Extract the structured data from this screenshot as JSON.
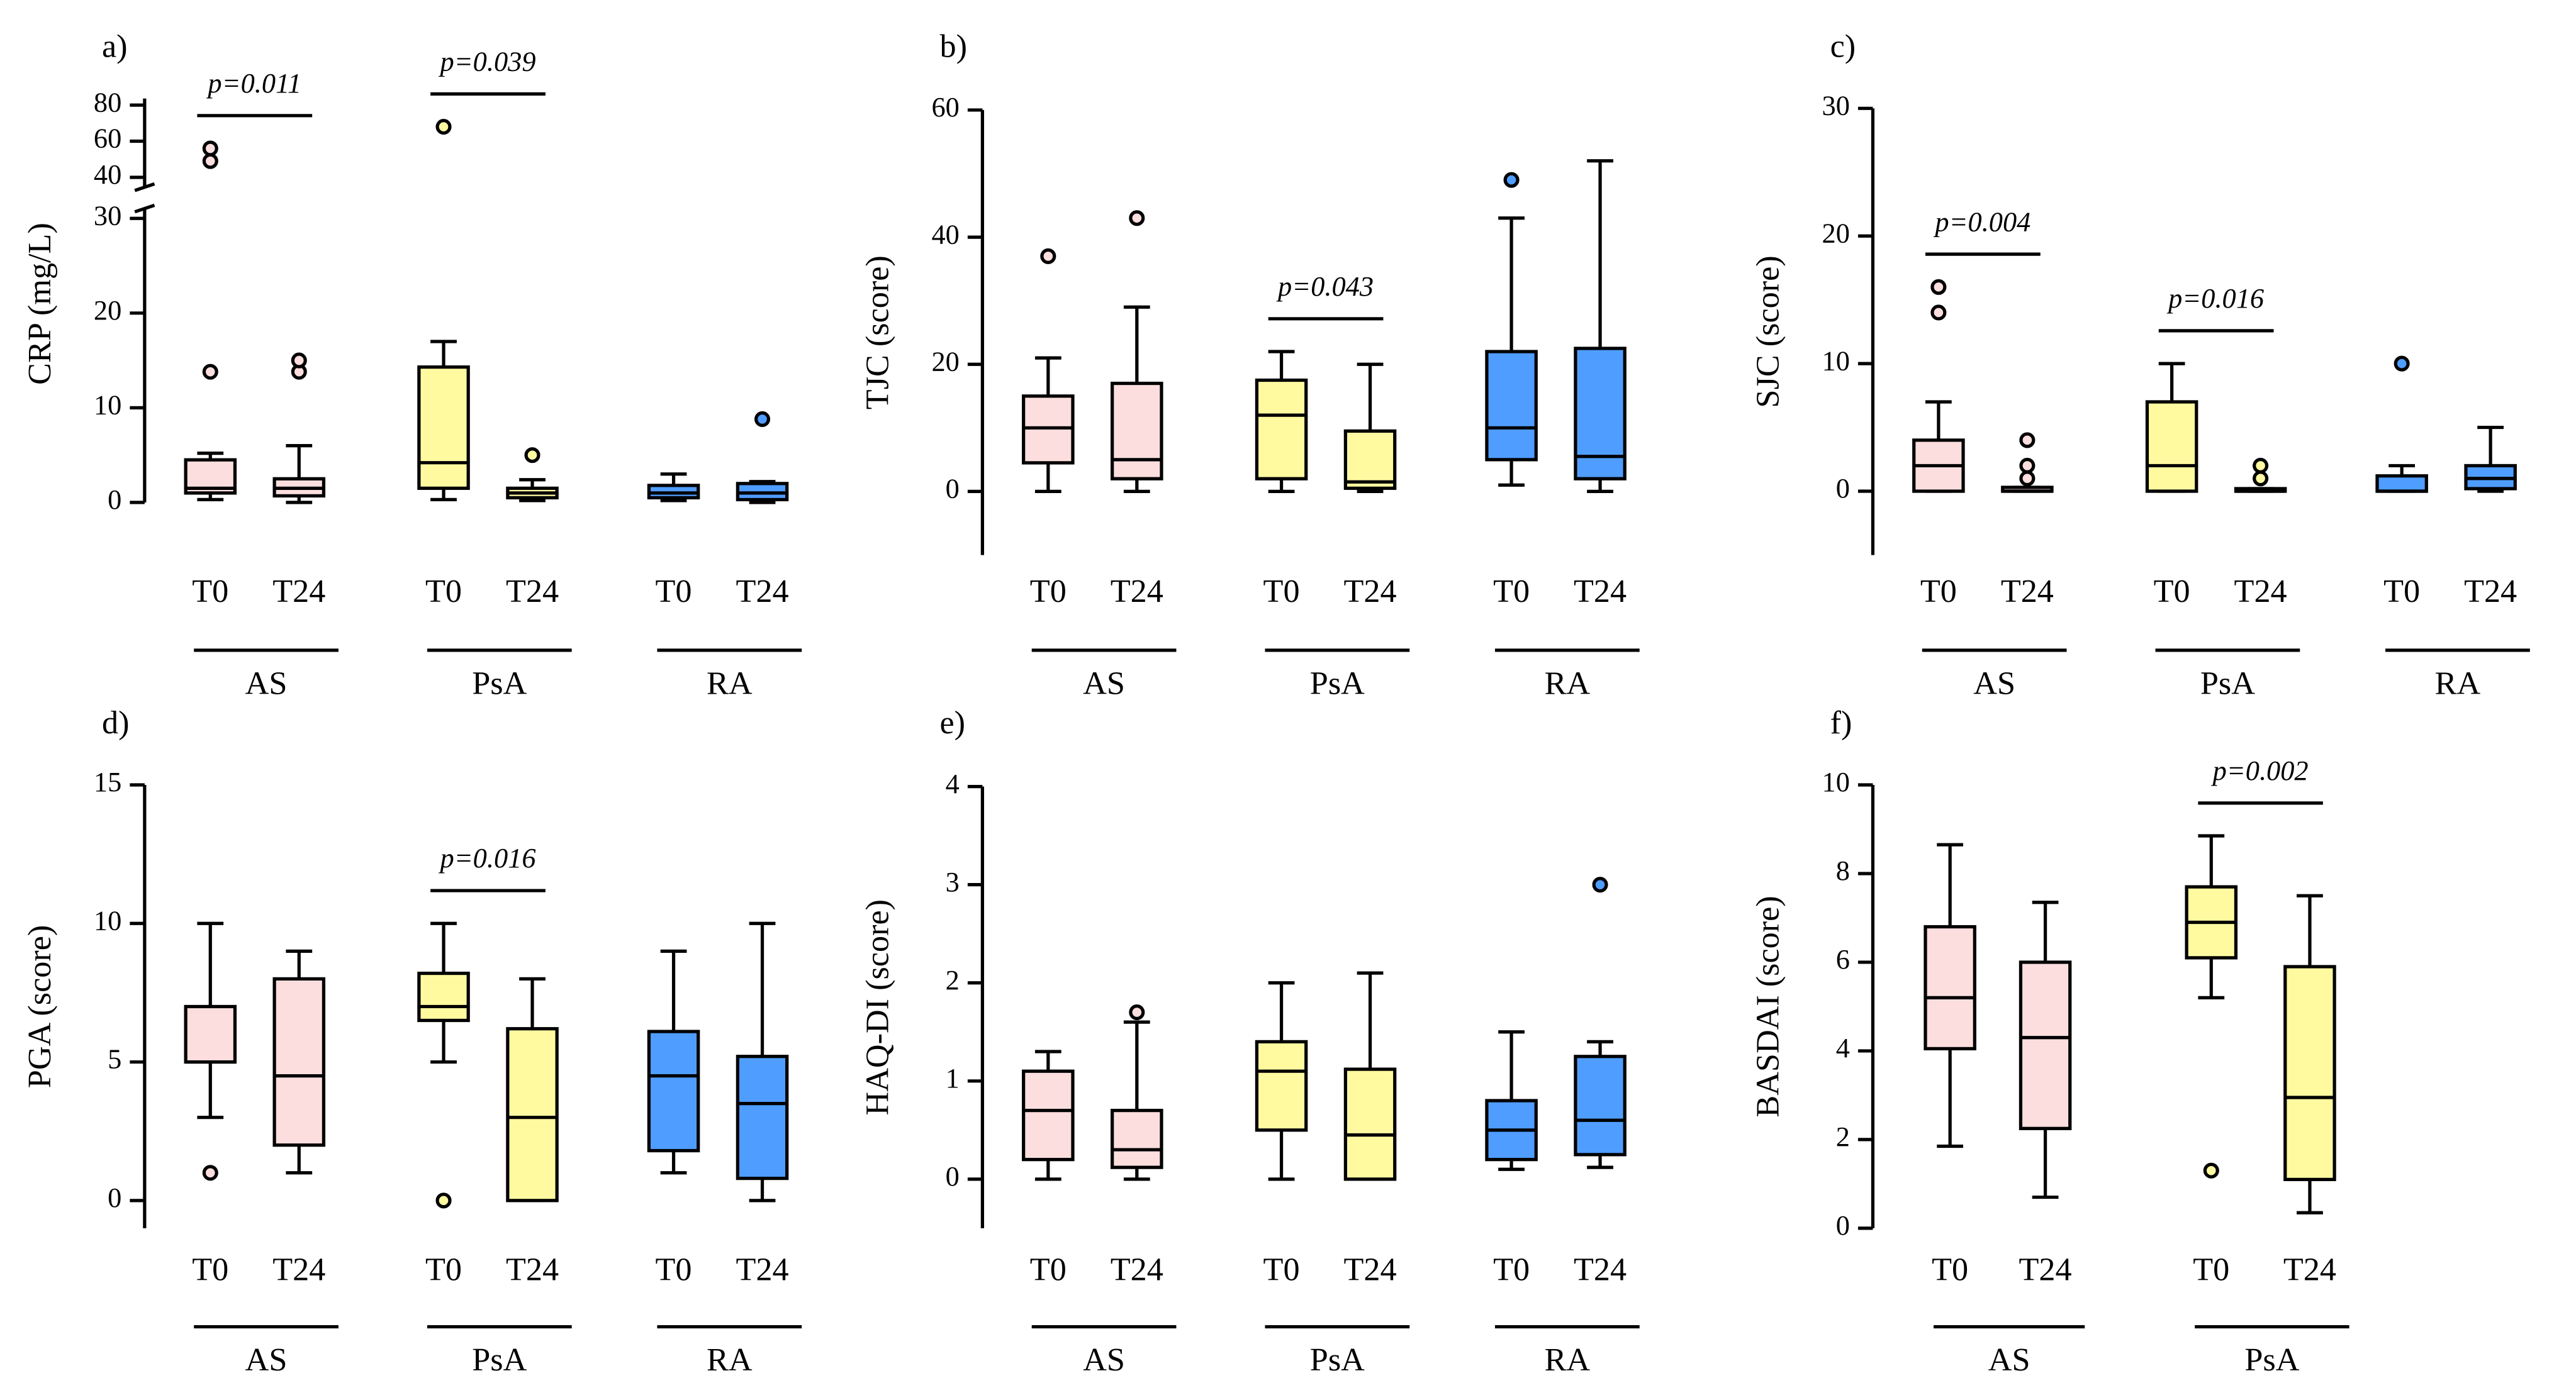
{
  "chart_data": [
    {
      "type": "box",
      "panel": "a)",
      "ylabel": "CRP (mg/L)",
      "ylim": [
        0,
        30
      ],
      "yticks": [
        0,
        10,
        20,
        30
      ],
      "axis_break": {
        "ylim": [
          40,
          80
        ],
        "yticks": [
          40,
          60,
          80
        ]
      },
      "groups": [
        {
          "name": "AS",
          "color": "#fcdede",
          "boxes": [
            {
              "label": "T0",
              "min": 0.3,
              "q1": 1,
              "median": 1.5,
              "q3": 4.5,
              "max": 5.2,
              "outliers": [
                13.8,
                49,
                56
              ]
            },
            {
              "label": "T24",
              "min": 0,
              "q1": 0.7,
              "median": 1.5,
              "q3": 2.5,
              "max": 6,
              "outliers": [
                13.8,
                15
              ]
            }
          ]
        },
        {
          "name": "PsA",
          "color": "#fffaa0",
          "boxes": [
            {
              "label": "T0",
              "min": 0.3,
              "q1": 1.5,
              "median": 4.2,
              "q3": 14.3,
              "max": 17,
              "outliers": [
                68
              ]
            },
            {
              "label": "T24",
              "min": 0.2,
              "q1": 0.5,
              "median": 1,
              "q3": 1.5,
              "max": 2.4,
              "outliers": [
                5
              ]
            }
          ]
        },
        {
          "name": "RA",
          "color": "#4f9dff",
          "boxes": [
            {
              "label": "T0",
              "min": 0.2,
              "q1": 0.5,
              "median": 1,
              "q3": 1.8,
              "max": 3,
              "outliers": []
            },
            {
              "label": "T24",
              "min": 0,
              "q1": 0.3,
              "median": 1,
              "q3": 2,
              "max": 2.2,
              "outliers": [
                8.8
              ]
            }
          ]
        }
      ],
      "annotations": [
        {
          "text": "p=0.011",
          "group": 0
        },
        {
          "text": "p=0.039",
          "group": 1
        }
      ]
    },
    {
      "type": "box",
      "panel": "b)",
      "ylabel": "TJC (score)",
      "ylim": [
        -10,
        60
      ],
      "yticks": [
        0,
        20,
        40,
        60
      ],
      "groups": [
        {
          "name": "AS",
          "color": "#fcdede",
          "boxes": [
            {
              "label": "T0",
              "min": 0,
              "q1": 4.5,
              "median": 10,
              "q3": 15,
              "max": 21,
              "outliers": [
                37
              ]
            },
            {
              "label": "T24",
              "min": 0,
              "q1": 2,
              "median": 5,
              "q3": 17,
              "max": 29,
              "outliers": [
                43
              ]
            }
          ]
        },
        {
          "name": "PsA",
          "color": "#fffaa0",
          "boxes": [
            {
              "label": "T0",
              "min": 0,
              "q1": 2,
              "median": 12,
              "q3": 17.5,
              "max": 22,
              "outliers": []
            },
            {
              "label": "T24",
              "min": 0,
              "q1": 0.5,
              "median": 1.5,
              "q3": 9.5,
              "max": 20,
              "outliers": []
            }
          ]
        },
        {
          "name": "RA",
          "color": "#4f9dff",
          "boxes": [
            {
              "label": "T0",
              "min": 1,
              "q1": 5,
              "median": 10,
              "q3": 22,
              "max": 43,
              "outliers": [
                49
              ]
            },
            {
              "label": "T24",
              "min": 0,
              "q1": 2,
              "median": 5.5,
              "q3": 22.5,
              "max": 52,
              "outliers": []
            }
          ]
        }
      ],
      "annotations": [
        {
          "text": "p=0.043",
          "group": 1
        }
      ]
    },
    {
      "type": "box",
      "panel": "c)",
      "ylabel": "SJC (score)",
      "ylim": [
        -5,
        30
      ],
      "yticks": [
        0,
        10,
        20,
        30
      ],
      "groups": [
        {
          "name": "AS",
          "color": "#fcdede",
          "boxes": [
            {
              "label": "T0",
              "min": 0,
              "q1": 0,
              "median": 2,
              "q3": 4,
              "max": 7,
              "outliers": [
                14,
                16
              ]
            },
            {
              "label": "T24",
              "min": 0,
              "q1": 0,
              "median": 0,
              "q3": 0.3,
              "max": 0.3,
              "outliers": [
                1,
                2,
                4
              ]
            }
          ]
        },
        {
          "name": "PsA",
          "color": "#fffaa0",
          "boxes": [
            {
              "label": "T0",
              "min": 0,
              "q1": 0,
              "median": 2,
              "q3": 7,
              "max": 10,
              "outliers": []
            },
            {
              "label": "T24",
              "min": 0,
              "q1": 0,
              "median": 0,
              "q3": 0.2,
              "max": 0.2,
              "outliers": [
                1,
                2
              ]
            }
          ]
        },
        {
          "name": "RA",
          "color": "#4f9dff",
          "boxes": [
            {
              "label": "T0",
              "min": 0,
              "q1": 0,
              "median": 0,
              "q3": 1.2,
              "max": 2,
              "outliers": [
                10
              ]
            },
            {
              "label": "T24",
              "min": 0,
              "q1": 0.2,
              "median": 1,
              "q3": 2,
              "max": 5,
              "outliers": []
            }
          ]
        }
      ],
      "annotations": [
        {
          "text": "p=0.004",
          "group": 0
        },
        {
          "text": "p=0.016",
          "group": 1
        }
      ]
    },
    {
      "type": "box",
      "panel": "d)",
      "ylabel": "PGA (score)",
      "ylim": [
        -1,
        15
      ],
      "yticks": [
        0,
        5,
        10,
        15
      ],
      "groups": [
        {
          "name": "AS",
          "color": "#fcdede",
          "boxes": [
            {
              "label": "T0",
              "min": 3,
              "q1": 5,
              "median": 5,
              "q3": 7,
              "max": 10,
              "outliers": [
                1
              ]
            },
            {
              "label": "T24",
              "min": 1,
              "q1": 2,
              "median": 4.5,
              "q3": 8,
              "max": 9,
              "outliers": []
            }
          ]
        },
        {
          "name": "PsA",
          "color": "#fffaa0",
          "boxes": [
            {
              "label": "T0",
              "min": 5,
              "q1": 6.5,
              "median": 7,
              "q3": 8.2,
              "max": 10,
              "outliers": [
                0
              ]
            },
            {
              "label": "T24",
              "min": 0,
              "q1": 0,
              "median": 3,
              "q3": 6.2,
              "max": 8,
              "outliers": []
            }
          ]
        },
        {
          "name": "RA",
          "color": "#4f9dff",
          "boxes": [
            {
              "label": "T0",
              "min": 1,
              "q1": 1.8,
              "median": 4.5,
              "q3": 6.1,
              "max": 9,
              "outliers": []
            },
            {
              "label": "T24",
              "min": 0,
              "q1": 0.8,
              "median": 3.5,
              "q3": 5.2,
              "max": 10,
              "outliers": []
            }
          ]
        }
      ],
      "annotations": [
        {
          "text": "p=0.016",
          "group": 1
        }
      ]
    },
    {
      "type": "box",
      "panel": "e)",
      "ylabel": "HAQ-DI (score)",
      "ylim": [
        -0.5,
        4
      ],
      "yticks": [
        0,
        1,
        2,
        3,
        4
      ],
      "groups": [
        {
          "name": "AS",
          "color": "#fcdede",
          "boxes": [
            {
              "label": "T0",
              "min": 0,
              "q1": 0.2,
              "median": 0.7,
              "q3": 1.1,
              "max": 1.3,
              "outliers": []
            },
            {
              "label": "T24",
              "min": 0,
              "q1": 0.12,
              "median": 0.3,
              "q3": 0.7,
              "max": 1.6,
              "outliers": [
                1.7
              ]
            }
          ]
        },
        {
          "name": "PsA",
          "color": "#fffaa0",
          "boxes": [
            {
              "label": "T0",
              "min": 0,
              "q1": 0.5,
              "median": 1.1,
              "q3": 1.4,
              "max": 2,
              "outliers": []
            },
            {
              "label": "T24",
              "min": 0,
              "q1": 0,
              "median": 0.45,
              "q3": 1.12,
              "max": 2.1,
              "outliers": []
            }
          ]
        },
        {
          "name": "RA",
          "color": "#4f9dff",
          "boxes": [
            {
              "label": "T0",
              "min": 0.1,
              "q1": 0.2,
              "median": 0.5,
              "q3": 0.8,
              "max": 1.5,
              "outliers": []
            },
            {
              "label": "T24",
              "min": 0.12,
              "q1": 0.25,
              "median": 0.6,
              "q3": 1.25,
              "max": 1.4,
              "outliers": [
                3
              ]
            }
          ]
        }
      ],
      "annotations": []
    },
    {
      "type": "box",
      "panel": "f)",
      "ylabel": "BASDAI (score)",
      "ylim": [
        0,
        10
      ],
      "yticks": [
        0,
        2,
        4,
        6,
        8,
        10
      ],
      "groups": [
        {
          "name": "AS",
          "color": "#fcdede",
          "boxes": [
            {
              "label": "T0",
              "min": 1.85,
              "q1": 4.05,
              "median": 5.2,
              "q3": 6.8,
              "max": 8.65,
              "outliers": []
            },
            {
              "label": "T24",
              "min": 0.7,
              "q1": 2.25,
              "median": 4.3,
              "q3": 6,
              "max": 7.35,
              "outliers": []
            }
          ]
        },
        {
          "name": "PsA",
          "color": "#fffaa0",
          "boxes": [
            {
              "label": "T0",
              "min": 5.2,
              "q1": 6.1,
              "median": 6.9,
              "q3": 7.7,
              "max": 8.85,
              "outliers": [
                1.3
              ]
            },
            {
              "label": "T24",
              "min": 0.35,
              "q1": 1.1,
              "median": 2.95,
              "q3": 5.9,
              "max": 7.5,
              "outliers": []
            }
          ]
        }
      ],
      "annotations": [
        {
          "text": "p=0.002",
          "group": 1
        }
      ]
    }
  ]
}
